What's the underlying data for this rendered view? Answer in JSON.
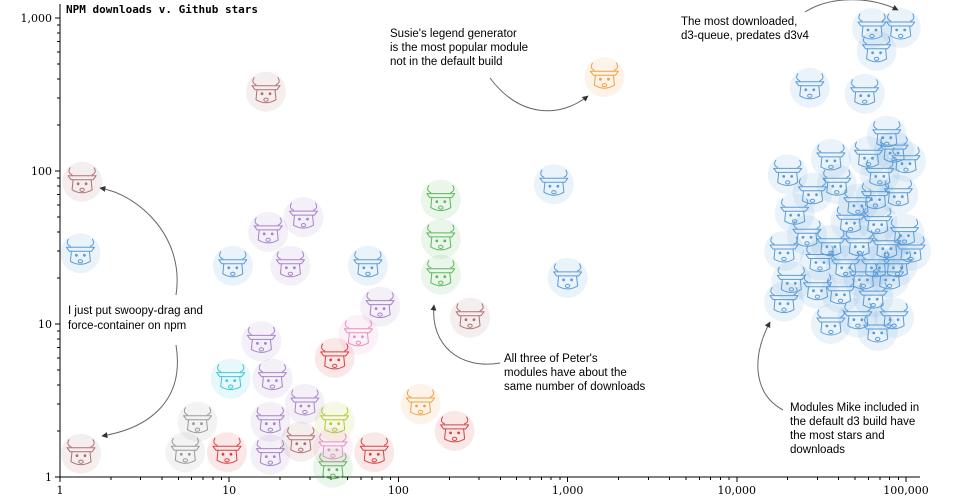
{
  "chart_data": {
    "type": "scatter",
    "title": "NPM downloads v. Github stars",
    "xlabel": "",
    "ylabel": "",
    "xscale": "log",
    "yscale": "log",
    "xlim": [
      1,
      100000
    ],
    "ylim": [
      1,
      1000
    ],
    "grid": false,
    "x_ticks": [
      {
        "v": 1,
        "label": "1"
      },
      {
        "v": 10,
        "label": "10"
      },
      {
        "v": 100,
        "label": "100"
      },
      {
        "v": 1000,
        "label": "1,000"
      },
      {
        "v": 10000,
        "label": "10,000"
      },
      {
        "v": 100000,
        "label": "100,000"
      }
    ],
    "y_ticks": [
      {
        "v": 1,
        "label": "1"
      },
      {
        "v": 10,
        "label": "10"
      },
      {
        "v": 100,
        "label": "100"
      },
      {
        "v": 1000,
        "label": "1,000"
      }
    ],
    "colors": {
      "default_build": "#5a9bd5",
      "brown": "#b07070",
      "orange": "#f0a040",
      "green": "#5cb85c",
      "purple": "#a882c8",
      "gray": "#999999",
      "red": "#d94040",
      "pink": "#e58fc0",
      "cyan": "#3cc8d8",
      "yellow": "#b5c832"
    },
    "points": [
      {
        "x": 1.35,
        "y": 85,
        "c": "brown"
      },
      {
        "x": 1.32,
        "y": 29,
        "c": "default_build"
      },
      {
        "x": 1.33,
        "y": 1.42,
        "c": "brown"
      },
      {
        "x": 16.5,
        "y": 330,
        "c": "brown"
      },
      {
        "x": 1650,
        "y": 410,
        "c": "orange"
      },
      {
        "x": 10.5,
        "y": 24,
        "c": "default_build"
      },
      {
        "x": 17,
        "y": 40,
        "c": "purple"
      },
      {
        "x": 27.5,
        "y": 50,
        "c": "purple"
      },
      {
        "x": 23,
        "y": 24,
        "c": "purple"
      },
      {
        "x": 66,
        "y": 24,
        "c": "default_build"
      },
      {
        "x": 78,
        "y": 13,
        "c": "purple"
      },
      {
        "x": 178,
        "y": 65,
        "c": "green"
      },
      {
        "x": 178,
        "y": 36,
        "c": "green"
      },
      {
        "x": 178,
        "y": 21,
        "c": "green"
      },
      {
        "x": 830,
        "y": 82,
        "c": "default_build"
      },
      {
        "x": 1000,
        "y": 20,
        "c": "default_build"
      },
      {
        "x": 265,
        "y": 11,
        "c": "brown"
      },
      {
        "x": 58,
        "y": 8.5,
        "c": "pink"
      },
      {
        "x": 42,
        "y": 6,
        "c": "red"
      },
      {
        "x": 15.5,
        "y": 7.7,
        "c": "purple"
      },
      {
        "x": 10.2,
        "y": 4.4,
        "c": "cyan"
      },
      {
        "x": 18,
        "y": 4.4,
        "c": "purple"
      },
      {
        "x": 28,
        "y": 3,
        "c": "purple"
      },
      {
        "x": 6.5,
        "y": 2.3,
        "c": "gray"
      },
      {
        "x": 17.5,
        "y": 2.3,
        "c": "purple"
      },
      {
        "x": 42,
        "y": 2.3,
        "c": "yellow"
      },
      {
        "x": 5.5,
        "y": 1.45,
        "c": "gray"
      },
      {
        "x": 9.7,
        "y": 1.45,
        "c": "red"
      },
      {
        "x": 17.5,
        "y": 1.4,
        "c": "purple"
      },
      {
        "x": 26.5,
        "y": 1.7,
        "c": "brown"
      },
      {
        "x": 41,
        "y": 1.15,
        "c": "green"
      },
      {
        "x": 41,
        "y": 1.55,
        "c": "pink"
      },
      {
        "x": 72,
        "y": 1.45,
        "c": "red"
      },
      {
        "x": 135,
        "y": 3,
        "c": "orange"
      },
      {
        "x": 215,
        "y": 2,
        "c": "red"
      },
      {
        "x": 93000,
        "y": 860,
        "c": "default_build"
      },
      {
        "x": 63000,
        "y": 860,
        "c": "default_build"
      },
      {
        "x": 67000,
        "y": 610,
        "c": "default_build"
      },
      {
        "x": 27000,
        "y": 350,
        "c": "default_build"
      },
      {
        "x": 57000,
        "y": 320,
        "c": "default_build"
      },
      {
        "x": 77000,
        "y": 170,
        "c": "default_build"
      },
      {
        "x": 60000,
        "y": 125,
        "c": "default_build"
      },
      {
        "x": 85000,
        "y": 135,
        "c": "default_build"
      },
      {
        "x": 100000,
        "y": 115,
        "c": "default_build"
      },
      {
        "x": 36000,
        "y": 120,
        "c": "default_build"
      },
      {
        "x": 70000,
        "y": 95,
        "c": "default_build"
      },
      {
        "x": 20000,
        "y": 95,
        "c": "default_build"
      },
      {
        "x": 39000,
        "y": 82,
        "c": "default_build"
      },
      {
        "x": 28000,
        "y": 72,
        "c": "default_build"
      },
      {
        "x": 66000,
        "y": 67,
        "c": "default_build"
      },
      {
        "x": 90000,
        "y": 70,
        "c": "default_build"
      },
      {
        "x": 52000,
        "y": 61,
        "c": "default_build"
      },
      {
        "x": 22000,
        "y": 53,
        "c": "default_build"
      },
      {
        "x": 47000,
        "y": 47,
        "c": "default_build"
      },
      {
        "x": 68000,
        "y": 46,
        "c": "default_build"
      },
      {
        "x": 98000,
        "y": 39,
        "c": "default_build"
      },
      {
        "x": 26000,
        "y": 38,
        "c": "default_build"
      },
      {
        "x": 36000,
        "y": 33,
        "c": "default_build"
      },
      {
        "x": 53000,
        "y": 33,
        "c": "default_build"
      },
      {
        "x": 77000,
        "y": 32,
        "c": "default_build"
      },
      {
        "x": 19000,
        "y": 30,
        "c": "default_build"
      },
      {
        "x": 107000,
        "y": 30,
        "c": "default_build"
      },
      {
        "x": 31000,
        "y": 26,
        "c": "default_build"
      },
      {
        "x": 44000,
        "y": 24,
        "c": "default_build"
      },
      {
        "x": 66000,
        "y": 24,
        "c": "default_build"
      },
      {
        "x": 89000,
        "y": 24,
        "c": "default_build"
      },
      {
        "x": 56000,
        "y": 20,
        "c": "default_build"
      },
      {
        "x": 80000,
        "y": 20,
        "c": "default_build"
      },
      {
        "x": 21000,
        "y": 19,
        "c": "default_build"
      },
      {
        "x": 30000,
        "y": 17,
        "c": "default_build"
      },
      {
        "x": 41000,
        "y": 16,
        "c": "default_build"
      },
      {
        "x": 64000,
        "y": 15,
        "c": "default_build"
      },
      {
        "x": 19000,
        "y": 14,
        "c": "default_build"
      },
      {
        "x": 52000,
        "y": 11,
        "c": "default_build"
      },
      {
        "x": 85000,
        "y": 11,
        "c": "default_build"
      },
      {
        "x": 36000,
        "y": 10,
        "c": "default_build"
      },
      {
        "x": 68000,
        "y": 9,
        "c": "default_build"
      }
    ],
    "annotations": [
      {
        "id": "susie",
        "lines": [
          "Susie's legend generator",
          "is the most popular module",
          "not in the default build"
        ]
      },
      {
        "id": "queue",
        "lines": [
          "The most downloaded,",
          "d3-queue, predates d3v4"
        ]
      },
      {
        "id": "swoopy",
        "lines": [
          "I just put swoopy-drag and",
          "force-container on npm"
        ]
      },
      {
        "id": "peter",
        "lines": [
          "All three of Peter's",
          "modules have about the",
          "same number of downloads"
        ]
      },
      {
        "id": "mike",
        "lines": [
          "Modules Mike included in",
          "the default d3 build have",
          "the most stars and",
          "downloads"
        ]
      }
    ]
  }
}
